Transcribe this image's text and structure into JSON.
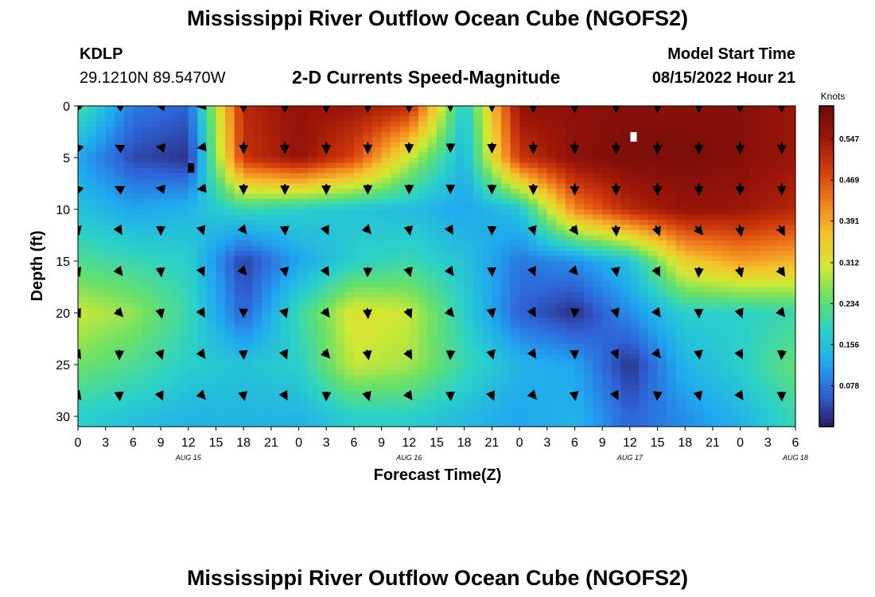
{
  "page": {
    "title": "Mississippi River Outflow Ocean Cube (NGOFS2)",
    "footer_title": "Mississippi River Outflow Ocean Cube (NGOFS2)",
    "station_id": "KDLP",
    "station_coords": "29.1210N  89.5470W",
    "subtitle": "2-D Currents Speed-Magnitude",
    "model_start_label": "Model Start Time",
    "model_start_value": "08/15/2022 Hour 21"
  },
  "chart_data": {
    "type": "heatmap",
    "title": "2-D Currents Speed-Magnitude",
    "xlabel": "Forecast Time(Z)",
    "ylabel": "Depth (ft)",
    "colorbar_label": "Knots",
    "x_tick_labels": [
      "0",
      "3",
      "6",
      "9",
      "12",
      "15",
      "18",
      "21",
      "0",
      "3",
      "6",
      "9",
      "12",
      "15",
      "18",
      "21",
      "0",
      "3",
      "6",
      "9",
      "12",
      "15",
      "18",
      "21",
      "0",
      "3",
      "6"
    ],
    "date_labels": [
      {
        "label": "AUG 15",
        "hour": 12
      },
      {
        "label": "AUG 16",
        "hour": 36
      },
      {
        "label": "AUG 17",
        "hour": 60
      },
      {
        "label": "AUG 18",
        "hour": 78
      }
    ],
    "xlim_hours": [
      0,
      78
    ],
    "y_ticks": [
      0,
      5,
      10,
      15,
      20,
      25,
      30
    ],
    "ylim": [
      0,
      31
    ],
    "y_inverted": true,
    "colorbar_ticks": [
      "0.547",
      "0.469",
      "0.391",
      "0.312",
      "0.234",
      "0.156",
      "0.078"
    ],
    "colorbar_range": [
      0.0,
      0.61
    ],
    "colorscale": [
      "#2a1b5e",
      "#2f63d8",
      "#20a8f0",
      "#2bd1c8",
      "#66e06a",
      "#d2e832",
      "#f5c22c",
      "#f07e1e",
      "#d23c0c",
      "#9c1608",
      "#6e0a0a"
    ],
    "speed_grid": {
      "depths_ft": [
        0,
        5,
        10,
        15,
        20,
        25,
        30
      ],
      "hours": [
        0,
        6,
        12,
        18,
        24,
        30,
        36,
        42,
        48,
        54,
        60,
        66,
        72,
        78
      ],
      "values": [
        [
          0.22,
          0.08,
          0.06,
          0.52,
          0.56,
          0.55,
          0.52,
          0.16,
          0.56,
          0.57,
          0.58,
          0.58,
          0.58,
          0.55
        ],
        [
          0.12,
          0.04,
          0.02,
          0.5,
          0.56,
          0.48,
          0.3,
          0.14,
          0.5,
          0.57,
          0.59,
          0.59,
          0.58,
          0.55
        ],
        [
          0.16,
          0.12,
          0.14,
          0.2,
          0.18,
          0.16,
          0.15,
          0.12,
          0.16,
          0.42,
          0.52,
          0.56,
          0.55,
          0.52
        ],
        [
          0.22,
          0.2,
          0.18,
          0.03,
          0.12,
          0.18,
          0.2,
          0.16,
          0.08,
          0.1,
          0.16,
          0.35,
          0.4,
          0.38
        ],
        [
          0.3,
          0.27,
          0.2,
          0.06,
          0.2,
          0.32,
          0.3,
          0.18,
          0.06,
          0.02,
          0.1,
          0.18,
          0.18,
          0.2
        ],
        [
          0.25,
          0.22,
          0.18,
          0.16,
          0.18,
          0.3,
          0.28,
          0.2,
          0.14,
          0.12,
          0.02,
          0.14,
          0.18,
          0.24
        ],
        [
          0.18,
          0.16,
          0.14,
          0.14,
          0.14,
          0.18,
          0.18,
          0.15,
          0.12,
          0.14,
          0.06,
          0.1,
          0.14,
          0.2
        ]
      ]
    },
    "markers": [
      {
        "hour": 12.3,
        "depth": 6,
        "color": "#000000"
      },
      {
        "hour": 60.4,
        "depth": 3,
        "color": "#ffffff"
      }
    ]
  }
}
